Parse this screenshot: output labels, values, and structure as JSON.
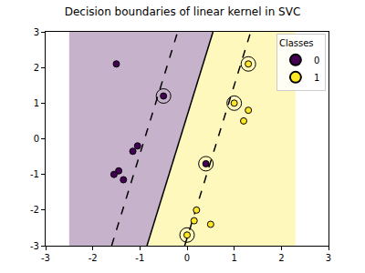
{
  "chart_data": {
    "type": "scatter",
    "title": "Decision boundaries of linear kernel in SVC",
    "xlim": [
      -3,
      3
    ],
    "ylim": [
      -3,
      3
    ],
    "xticks": [
      -3,
      -2,
      -1,
      0,
      1,
      2,
      3
    ],
    "yticks": [
      -3,
      -2,
      -1,
      0,
      1,
      2,
      3
    ],
    "legend": "upper right",
    "legend_title": "Classes",
    "regions": [
      {
        "color": "#440154",
        "x": [
          -2.5,
          -0.85,
          0.55,
          -2.5
        ],
        "y": [
          -3,
          -3,
          3,
          3
        ]
      },
      {
        "color": "#fde725",
        "x": [
          -0.85,
          2.3,
          2.3,
          0.55
        ],
        "y": [
          -3,
          -3,
          3,
          3
        ]
      }
    ],
    "boundaries": [
      {
        "x": [
          -0.85,
          0.55
        ],
        "y": [
          -3,
          3
        ],
        "color": "#000000",
        "line_style": "solid"
      },
      {
        "x": [
          -1.6,
          -0.2
        ],
        "y": [
          -3,
          3
        ],
        "color": "#000000",
        "line_style": "dashed"
      },
      {
        "x": [
          -0.05,
          1.35
        ],
        "y": [
          -3,
          3
        ],
        "color": "#000000",
        "line_style": "dashed"
      }
    ],
    "series": [
      {
        "name": "0",
        "color": "#440154",
        "x": [
          -1.5,
          -0.5,
          -1.05,
          -1.15,
          -1.45,
          -1.55,
          -1.35,
          0.4
        ],
        "y": [
          2.1,
          1.2,
          -0.2,
          -0.35,
          -0.9,
          -1.0,
          -1.15,
          -0.7
        ]
      },
      {
        "name": "1",
        "color": "#fde725",
        "x": [
          1.3,
          1.0,
          1.3,
          1.2,
          0.2,
          0.15,
          0.5,
          0.0
        ],
        "y": [
          2.1,
          1.0,
          0.8,
          0.5,
          -2.0,
          -2.3,
          -2.4,
          -2.7
        ]
      }
    ],
    "support_vectors": {
      "color": "#000000",
      "x": [
        -0.5,
        0.4,
        1.3,
        1.0,
        0.0
      ],
      "y": [
        1.2,
        -0.7,
        2.1,
        1.0,
        -2.7
      ]
    }
  }
}
